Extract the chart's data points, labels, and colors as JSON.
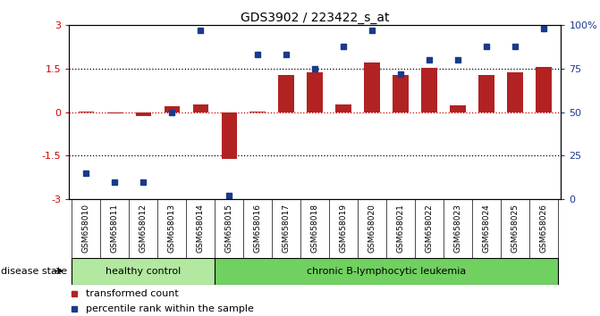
{
  "title": "GDS3902 / 223422_s_at",
  "samples": [
    "GSM658010",
    "GSM658011",
    "GSM658012",
    "GSM658013",
    "GSM658014",
    "GSM658015",
    "GSM658016",
    "GSM658017",
    "GSM658018",
    "GSM658019",
    "GSM658020",
    "GSM658021",
    "GSM658022",
    "GSM658023",
    "GSM658024",
    "GSM658025",
    "GSM658026"
  ],
  "bar_values": [
    0.02,
    -0.05,
    -0.12,
    0.2,
    0.28,
    -1.62,
    0.02,
    1.28,
    1.38,
    0.28,
    1.72,
    1.28,
    1.52,
    0.24,
    1.28,
    1.38,
    1.56
  ],
  "dot_values": [
    15,
    10,
    10,
    50,
    97,
    2,
    83,
    83,
    75,
    88,
    97,
    72,
    80,
    80,
    88,
    88,
    98
  ],
  "bar_color": "#b22222",
  "dot_color": "#1a3a8a",
  "healthy_count": 5,
  "healthy_label": "healthy control",
  "leukemia_label": "chronic B-lymphocytic leukemia",
  "disease_state_label": "disease state",
  "legend_bar": "transformed count",
  "legend_dot": "percentile rank within the sample",
  "ylim_left": [
    -3,
    3
  ],
  "ylim_right": [
    0,
    100
  ],
  "yticks_left": [
    -3,
    -1.5,
    0,
    1.5,
    3
  ],
  "yticks_right": [
    0,
    25,
    50,
    75,
    100
  ],
  "ytick_labels_left": [
    "-3",
    "-1.5",
    "0",
    "1.5",
    "3"
  ],
  "ytick_labels_right": [
    "0",
    "25",
    "50",
    "75",
    "100%"
  ],
  "hline_dotted": [
    -1.5,
    1.5
  ],
  "hline_red": 0.0,
  "bg_color": "#ffffff",
  "plot_bg": "#ffffff",
  "healthy_bg": "#b2e8a0",
  "leukemia_bg": "#70d060",
  "sample_bg": "#d0d0d0"
}
